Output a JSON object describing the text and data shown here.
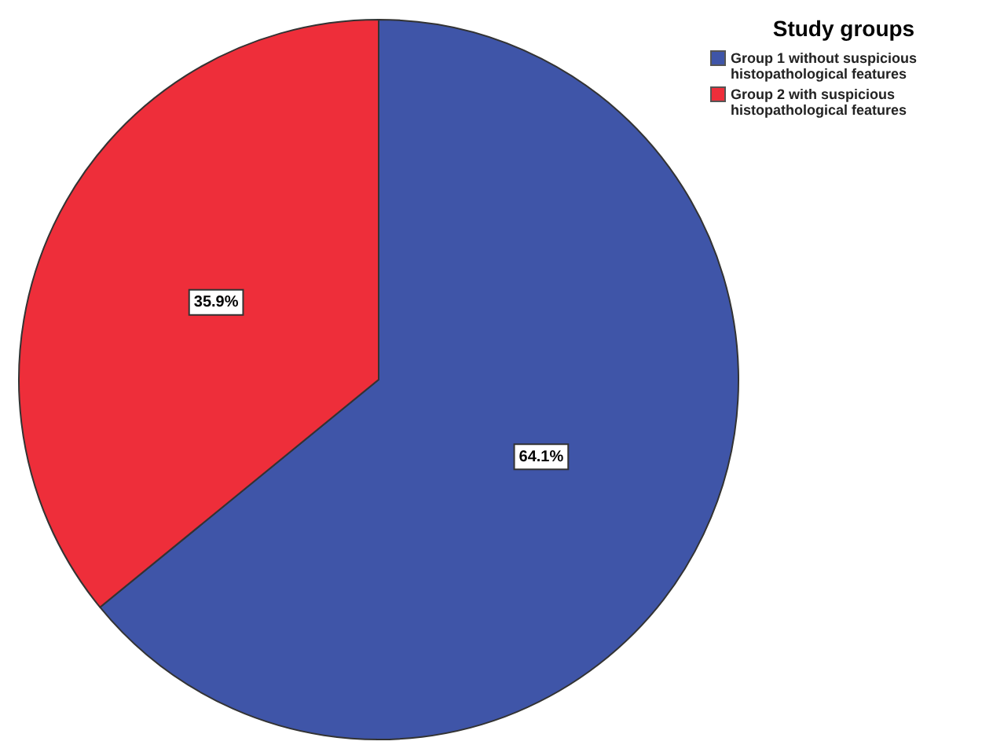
{
  "chart_data": {
    "type": "pie",
    "legend_title": "Study groups",
    "legend": "top right",
    "categories": [
      "Group 1 without suspicious histopathological features",
      "Group 2 with suspicious histopathological features"
    ],
    "values": [
      64.1,
      35.9
    ],
    "colors": [
      "#3f55a8",
      "#ee2e3a"
    ],
    "value_labels": [
      "64.1%",
      "35.9%"
    ]
  }
}
